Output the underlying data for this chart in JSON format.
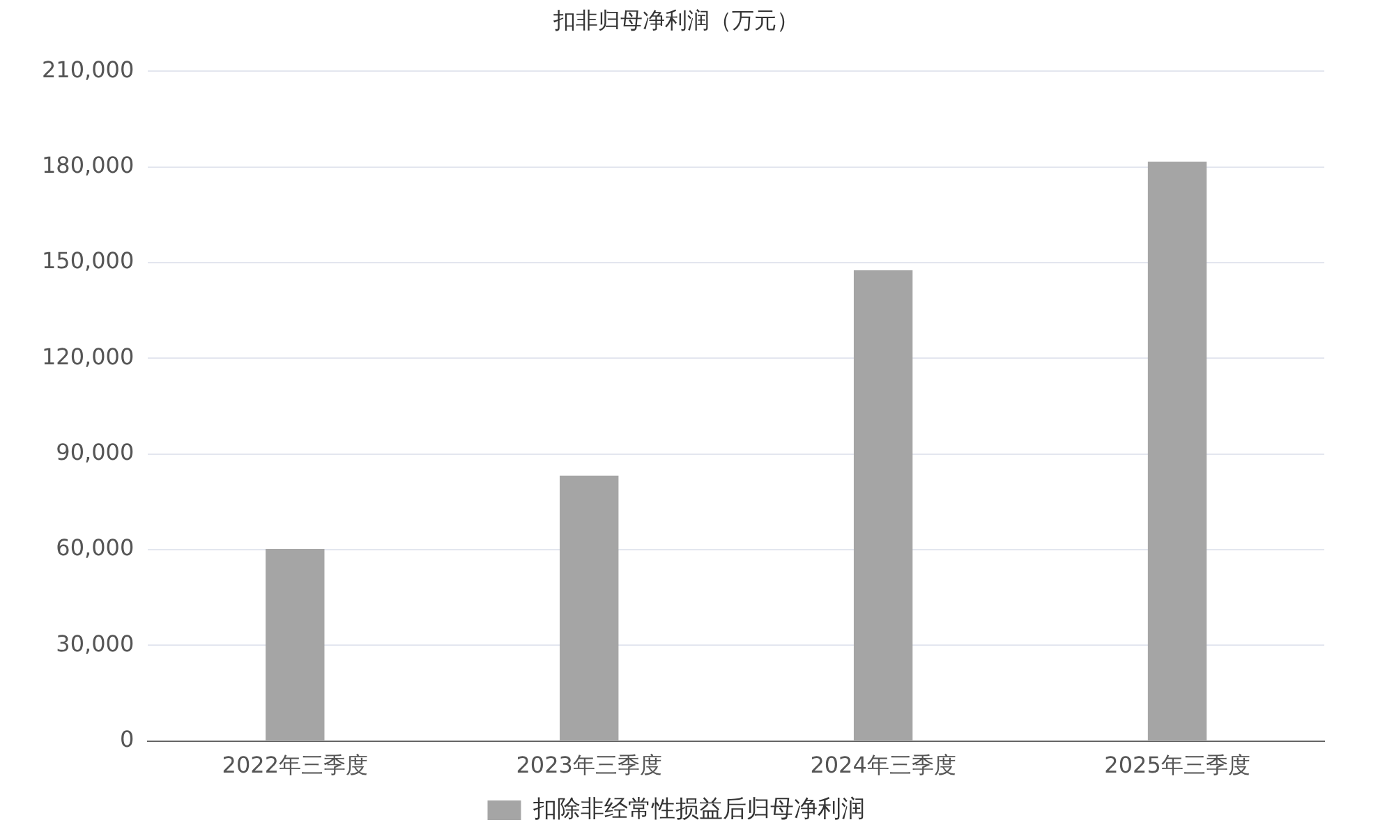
{
  "chart_data": {
    "type": "bar",
    "title": "扣非归母净利润（万元）",
    "categories": [
      "2022年三季度",
      "2023年三季度",
      "2024年三季度",
      "2025年三季度"
    ],
    "series": [
      {
        "name": "扣除非经常性损益后归母净利润",
        "color": "#a5a5a5",
        "values": [
          60200,
          83200,
          147600,
          181700
        ]
      }
    ],
    "ylim": [
      0,
      210000
    ],
    "yticks": [
      {
        "value": 0,
        "label": "0"
      },
      {
        "value": 30000,
        "label": "30,000"
      },
      {
        "value": 60000,
        "label": "60,000"
      },
      {
        "value": 90000,
        "label": "90,000"
      },
      {
        "value": 120000,
        "label": "120,000"
      },
      {
        "value": 150000,
        "label": "150,000"
      },
      {
        "value": 180000,
        "label": "180,000"
      },
      {
        "value": 210000,
        "label": "210,000"
      }
    ],
    "grid": "y",
    "legend": "bottom"
  }
}
